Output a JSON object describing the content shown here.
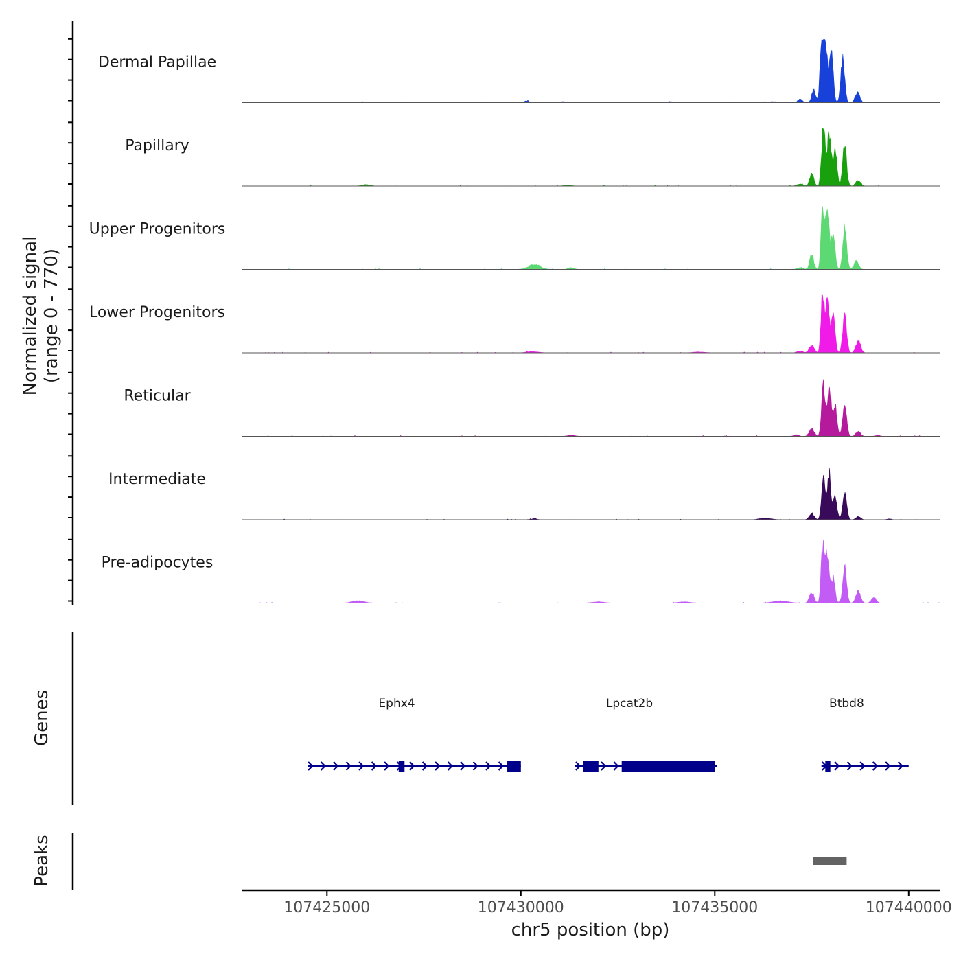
{
  "chart_data": {
    "type": "area",
    "title": "",
    "xlabel": "chr5 position (bp)",
    "ylabel_line1": "Normalized signal",
    "ylabel_line2": "(range 0 - 770)",
    "xlim": [
      107422800,
      107440800
    ],
    "ylim": [
      0,
      770
    ],
    "x_ticks": [
      {
        "value": 107425000,
        "label": "107425000"
      },
      {
        "value": 107430000,
        "label": "107430000"
      },
      {
        "value": 107435000,
        "label": "107435000"
      },
      {
        "value": 107440000,
        "label": "107440000"
      }
    ],
    "series": [
      {
        "name": "Dermal Papillae",
        "color": "#1741d9",
        "peaks": [
          [
            107437750,
            650,
            40
          ],
          [
            107437850,
            760,
            45
          ],
          [
            107438000,
            680,
            50
          ],
          [
            107438300,
            520,
            50
          ],
          [
            107438680,
            120,
            60
          ],
          [
            107437550,
            160,
            50
          ],
          [
            107437200,
            40,
            60
          ],
          [
            107436500,
            12,
            120
          ],
          [
            107430150,
            20,
            60
          ],
          [
            107431100,
            12,
            60
          ],
          [
            107433850,
            10,
            150
          ],
          [
            107426000,
            8,
            100
          ]
        ]
      },
      {
        "name": "Papillary",
        "color": "#18a00d",
        "peaks": [
          [
            107437800,
            710,
            45
          ],
          [
            107437950,
            650,
            50
          ],
          [
            107438100,
            420,
            50
          ],
          [
            107438350,
            500,
            50
          ],
          [
            107437500,
            160,
            50
          ],
          [
            107438700,
            70,
            60
          ],
          [
            107437200,
            25,
            80
          ],
          [
            107426000,
            18,
            100
          ],
          [
            107431200,
            10,
            100
          ]
        ]
      },
      {
        "name": "Upper Progenitors",
        "color": "#5cd972",
        "peaks": [
          [
            107437780,
            770,
            40
          ],
          [
            107437900,
            670,
            50
          ],
          [
            107438050,
            420,
            50
          ],
          [
            107438350,
            500,
            50
          ],
          [
            107437500,
            180,
            50
          ],
          [
            107438650,
            100,
            60
          ],
          [
            107430350,
            60,
            150
          ],
          [
            107431300,
            20,
            80
          ],
          [
            107437200,
            20,
            80
          ]
        ]
      },
      {
        "name": "Lower Progenitors",
        "color": "#f01be8",
        "peaks": [
          [
            107437780,
            700,
            40
          ],
          [
            107437900,
            650,
            50
          ],
          [
            107438050,
            470,
            50
          ],
          [
            107438350,
            470,
            50
          ],
          [
            107438700,
            150,
            60
          ],
          [
            107437500,
            100,
            60
          ],
          [
            107437200,
            20,
            80
          ],
          [
            107430300,
            15,
            150
          ],
          [
            107434600,
            10,
            150
          ]
        ]
      },
      {
        "name": "Reticular",
        "color": "#b5199c",
        "peaks": [
          [
            107437800,
            640,
            45
          ],
          [
            107437950,
            600,
            50
          ],
          [
            107438100,
            380,
            50
          ],
          [
            107438350,
            380,
            50
          ],
          [
            107437500,
            100,
            60
          ],
          [
            107438700,
            60,
            60
          ],
          [
            107437100,
            20,
            60
          ],
          [
            107431300,
            12,
            100
          ],
          [
            107439200,
            12,
            60
          ]
        ]
      },
      {
        "name": "Intermediate",
        "color": "#3a0a5a",
        "peaks": [
          [
            107437800,
            560,
            45
          ],
          [
            107437950,
            560,
            45
          ],
          [
            107438100,
            280,
            50
          ],
          [
            107438350,
            360,
            50
          ],
          [
            107437500,
            80,
            60
          ],
          [
            107438700,
            40,
            60
          ],
          [
            107430350,
            15,
            60
          ],
          [
            107436300,
            20,
            150
          ],
          [
            107439500,
            10,
            60
          ]
        ]
      },
      {
        "name": "Pre-adipocytes",
        "color": "#c25cf5",
        "peaks": [
          [
            107437780,
            670,
            40
          ],
          [
            107437900,
            600,
            50
          ],
          [
            107438050,
            300,
            50
          ],
          [
            107438350,
            420,
            50
          ],
          [
            107437500,
            130,
            60
          ],
          [
            107438700,
            150,
            60
          ],
          [
            107439100,
            70,
            60
          ],
          [
            107436700,
            25,
            200
          ],
          [
            107425800,
            30,
            150
          ],
          [
            107434200,
            15,
            150
          ],
          [
            107432000,
            15,
            150
          ]
        ]
      }
    ],
    "genes": [
      {
        "name": "Ephx4",
        "start": 107424500,
        "end": 107430000,
        "strand": "+",
        "exons": [
          [
            107426850,
            107427000
          ],
          [
            107429650,
            107430000
          ]
        ],
        "label_x": 107426800
      },
      {
        "name": "Lpcat2b",
        "start": 107431400,
        "end": 107435050,
        "strand": "+",
        "exons": [
          [
            107431600,
            107432000
          ],
          [
            107432600,
            107435000
          ]
        ],
        "label_x": 107432800
      },
      {
        "name": "Btbd8",
        "start": 107437750,
        "end": 107440000,
        "strand": "+",
        "exons": [
          [
            107437850,
            107437980
          ]
        ],
        "label_x": 107438400
      }
    ],
    "genes_track_label": "Genes",
    "peaks_track_label": "Peaks",
    "peaks": [
      [
        107437530,
        107438400
      ]
    ],
    "peak_color": "#636363",
    "gene_color": "#00008b"
  }
}
